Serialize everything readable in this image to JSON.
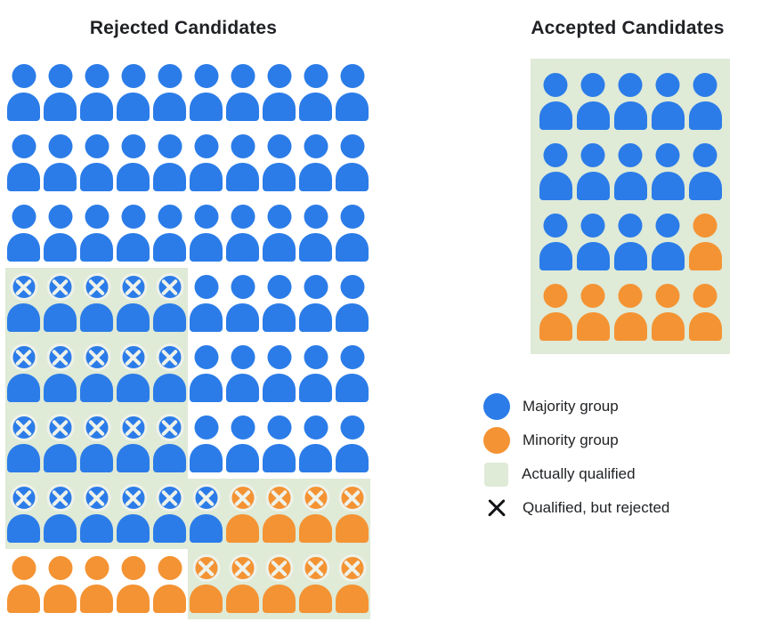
{
  "titles": {
    "rejected": "Rejected Candidates",
    "accepted": "Accepted Candidates"
  },
  "colors": {
    "majority": "#2b7ce8",
    "minority": "#f49333",
    "qualified": "#dfead7",
    "xmark": "#eef2ea",
    "legend_x": "#121316",
    "text": "#1f2124"
  },
  "cell_codes": {
    "b": "majority (blue) person",
    "o": "minority (orange) person",
    "x": "has X mark (qualified, but rejected)",
    "q": "on green background (actually qualified)"
  },
  "rejected_grid": {
    "columns": 10,
    "rows": [
      [
        "b",
        "b",
        "b",
        "b",
        "b",
        "b",
        "b",
        "b",
        "b",
        "b"
      ],
      [
        "b",
        "b",
        "b",
        "b",
        "b",
        "b",
        "b",
        "b",
        "b",
        "b"
      ],
      [
        "b",
        "b",
        "b",
        "b",
        "b",
        "b",
        "b",
        "b",
        "b",
        "b"
      ],
      [
        "bxq",
        "bxq",
        "bxq",
        "bxq",
        "bxq",
        "b",
        "b",
        "b",
        "b",
        "b"
      ],
      [
        "bxq",
        "bxq",
        "bxq",
        "bxq",
        "bxq",
        "b",
        "b",
        "b",
        "b",
        "b"
      ],
      [
        "bxq",
        "bxq",
        "bxq",
        "bxq",
        "bxq",
        "b",
        "b",
        "b",
        "b",
        "b"
      ],
      [
        "bxq",
        "bxq",
        "bxq",
        "bxq",
        "bxq",
        "bxq",
        "oxq",
        "oxq",
        "oxq",
        "oxq"
      ],
      [
        "o",
        "o",
        "o",
        "o",
        "o",
        "oxq",
        "oxq",
        "oxq",
        "oxq",
        "oxq"
      ]
    ]
  },
  "accepted_grid": {
    "columns": 5,
    "rows": [
      [
        "bq",
        "bq",
        "bq",
        "bq",
        "bq"
      ],
      [
        "bq",
        "bq",
        "bq",
        "bq",
        "bq"
      ],
      [
        "bq",
        "bq",
        "bq",
        "bq",
        "oq"
      ],
      [
        "oq",
        "oq",
        "oq",
        "oq",
        "oq"
      ]
    ]
  },
  "legend": {
    "items": [
      {
        "icon": "majority-circle",
        "label": "Majority group"
      },
      {
        "icon": "minority-circle",
        "label": "Minority group"
      },
      {
        "icon": "qualified-square",
        "label": "Actually qualified"
      },
      {
        "icon": "x-mark",
        "label": "Qualified, but rejected"
      }
    ]
  }
}
